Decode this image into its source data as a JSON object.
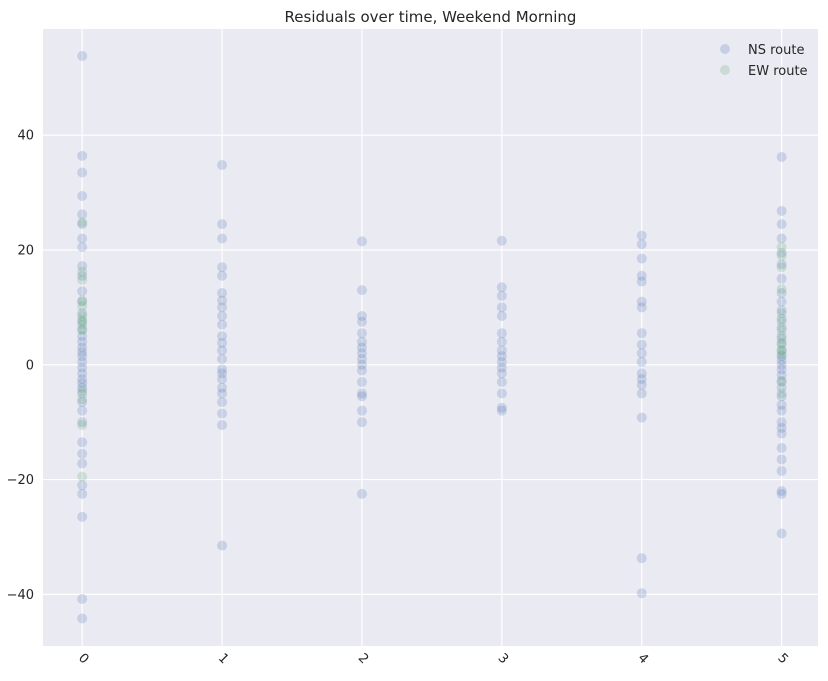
{
  "chart_data": {
    "type": "scatter",
    "title": "Residuals over time, Weekend Morning",
    "xlabel": "",
    "ylabel": "",
    "xlim": [
      -0.28,
      5.26
    ],
    "ylim": [
      -49.0,
      58.5
    ],
    "x_ticks": [
      "0",
      "1",
      "2",
      "3",
      "4",
      "5"
    ],
    "y_ticks": [
      "-40",
      "-20",
      "0",
      "20",
      "40"
    ],
    "grid": true,
    "legend": "top-right",
    "series": [
      {
        "name": "NS route",
        "color": "#4c72b0",
        "points": [
          [
            0,
            53.8
          ],
          [
            0,
            36.4
          ],
          [
            0,
            33.5
          ],
          [
            0,
            29.4
          ],
          [
            0,
            26.2
          ],
          [
            0,
            24.5
          ],
          [
            0,
            22.0
          ],
          [
            0,
            20.5
          ],
          [
            0,
            17.2
          ],
          [
            0,
            15.5
          ],
          [
            0,
            12.8
          ],
          [
            0,
            11.0
          ],
          [
            0,
            9.0
          ],
          [
            0,
            7.5
          ],
          [
            0,
            6.2
          ],
          [
            0,
            5.0
          ],
          [
            0,
            4.0
          ],
          [
            0,
            3.0
          ],
          [
            0,
            2.2
          ],
          [
            0,
            1.5
          ],
          [
            0,
            0.5
          ],
          [
            0,
            -0.5
          ],
          [
            0,
            -1.5
          ],
          [
            0,
            -2.5
          ],
          [
            0,
            -3.2
          ],
          [
            0,
            -4.0
          ],
          [
            0,
            -5.0
          ],
          [
            0,
            -6.5
          ],
          [
            0,
            -8.0
          ],
          [
            0,
            -10.0
          ],
          [
            0,
            -13.5
          ],
          [
            0,
            -15.5
          ],
          [
            0,
            -17.2
          ],
          [
            0,
            -21.0
          ],
          [
            0,
            -22.5
          ],
          [
            0,
            -26.5
          ],
          [
            0,
            -40.8
          ],
          [
            0,
            -44.2
          ],
          [
            1,
            34.8
          ],
          [
            1,
            24.5
          ],
          [
            1,
            22.0
          ],
          [
            1,
            17.0
          ],
          [
            1,
            15.5
          ],
          [
            1,
            12.5
          ],
          [
            1,
            11.2
          ],
          [
            1,
            10.0
          ],
          [
            1,
            8.5
          ],
          [
            1,
            7.0
          ],
          [
            1,
            5.0
          ],
          [
            1,
            3.8
          ],
          [
            1,
            2.5
          ],
          [
            1,
            1.0
          ],
          [
            1,
            -0.8
          ],
          [
            1,
            -1.5
          ],
          [
            1,
            -2.5
          ],
          [
            1,
            -4.0
          ],
          [
            1,
            -5.0
          ],
          [
            1,
            -6.5
          ],
          [
            1,
            -8.5
          ],
          [
            1,
            -10.5
          ],
          [
            1,
            -31.5
          ],
          [
            2,
            21.5
          ],
          [
            2,
            13.0
          ],
          [
            2,
            8.5
          ],
          [
            2,
            7.5
          ],
          [
            2,
            5.5
          ],
          [
            2,
            4.0
          ],
          [
            2,
            3.0
          ],
          [
            2,
            2.0
          ],
          [
            2,
            1.0
          ],
          [
            2,
            0.0
          ],
          [
            2,
            -1.0
          ],
          [
            2,
            -3.0
          ],
          [
            2,
            -5.0
          ],
          [
            2,
            -5.5
          ],
          [
            2,
            -8.0
          ],
          [
            2,
            -10.0
          ],
          [
            2,
            -22.5
          ],
          [
            3,
            21.6
          ],
          [
            3,
            13.5
          ],
          [
            3,
            12.0
          ],
          [
            3,
            10.0
          ],
          [
            3,
            8.5
          ],
          [
            3,
            5.5
          ],
          [
            3,
            4.0
          ],
          [
            3,
            2.5
          ],
          [
            3,
            1.5
          ],
          [
            3,
            0.5
          ],
          [
            3,
            -0.5
          ],
          [
            3,
            -1.5
          ],
          [
            3,
            -3.0
          ],
          [
            3,
            -5.0
          ],
          [
            3,
            -7.5
          ],
          [
            3,
            -8.0
          ],
          [
            4,
            22.5
          ],
          [
            4,
            21.0
          ],
          [
            4,
            18.5
          ],
          [
            4,
            15.5
          ],
          [
            4,
            14.5
          ],
          [
            4,
            11.0
          ],
          [
            4,
            10.0
          ],
          [
            4,
            5.5
          ],
          [
            4,
            3.5
          ],
          [
            4,
            2.0
          ],
          [
            4,
            0.5
          ],
          [
            4,
            -1.5
          ],
          [
            4,
            -2.5
          ],
          [
            4,
            -3.5
          ],
          [
            4,
            -5.0
          ],
          [
            4,
            -9.2
          ],
          [
            4,
            -33.7
          ],
          [
            4,
            -39.8
          ],
          [
            5,
            36.2
          ],
          [
            5,
            26.8
          ],
          [
            5,
            24.5
          ],
          [
            5,
            22.0
          ],
          [
            5,
            19.5
          ],
          [
            5,
            17.5
          ],
          [
            5,
            15.0
          ],
          [
            5,
            12.5
          ],
          [
            5,
            11.0
          ],
          [
            5,
            9.5
          ],
          [
            5,
            8.0
          ],
          [
            5,
            6.5
          ],
          [
            5,
            5.0
          ],
          [
            5,
            3.8
          ],
          [
            5,
            2.5
          ],
          [
            5,
            1.5
          ],
          [
            5,
            0.8
          ],
          [
            5,
            0.0
          ],
          [
            5,
            -0.8
          ],
          [
            5,
            -1.8
          ],
          [
            5,
            -2.8
          ],
          [
            5,
            -4.0
          ],
          [
            5,
            -5.5
          ],
          [
            5,
            -7.0
          ],
          [
            5,
            -8.0
          ],
          [
            5,
            -10.0
          ],
          [
            5,
            -11.0
          ],
          [
            5,
            -12.0
          ],
          [
            5,
            -14.5
          ],
          [
            5,
            -16.5
          ],
          [
            5,
            -18.5
          ],
          [
            5,
            -22.0
          ],
          [
            5,
            -22.5
          ],
          [
            5,
            -29.4
          ]
        ]
      },
      {
        "name": "EW route",
        "color": "#55a868",
        "points": [
          [
            0,
            24.8
          ],
          [
            0,
            16.2
          ],
          [
            0,
            14.8
          ],
          [
            0,
            11.2
          ],
          [
            0,
            10.2
          ],
          [
            0,
            8.5
          ],
          [
            0,
            7.8
          ],
          [
            0,
            7.0
          ],
          [
            0,
            6.0
          ],
          [
            0,
            -4.5
          ],
          [
            0,
            -6.0
          ],
          [
            0,
            -10.5
          ],
          [
            0,
            -19.5
          ],
          [
            5,
            20.5
          ],
          [
            5,
            19.0
          ],
          [
            5,
            17.0
          ],
          [
            5,
            13.2
          ],
          [
            5,
            9.0
          ],
          [
            5,
            7.5
          ],
          [
            5,
            6.0
          ],
          [
            5,
            4.5
          ],
          [
            5,
            3.5
          ],
          [
            5,
            2.5
          ],
          [
            5,
            1.8
          ],
          [
            5,
            -3.0
          ],
          [
            5,
            -5.0
          ]
        ]
      }
    ]
  }
}
